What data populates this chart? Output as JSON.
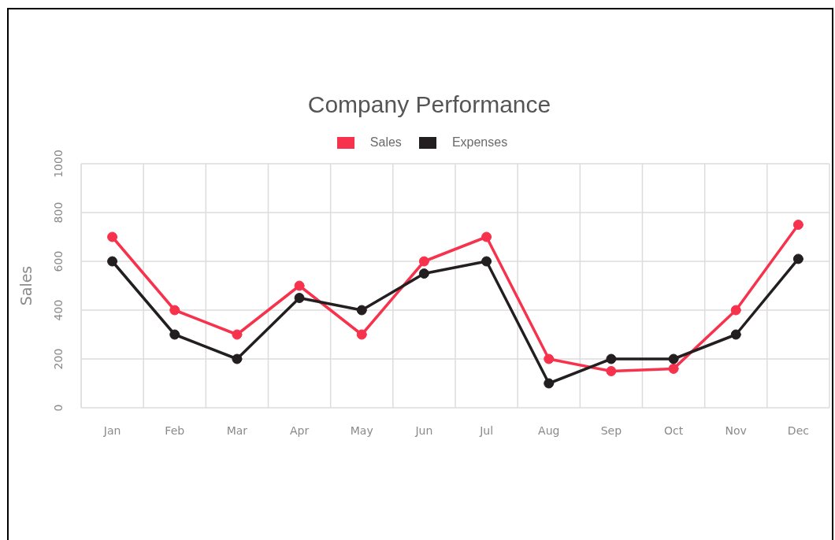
{
  "chart_data": {
    "type": "line",
    "title": "Company Performance",
    "ylabel": "Sales",
    "categories": [
      "Jan",
      "Feb",
      "Mar",
      "Apr",
      "May",
      "Jun",
      "Jul",
      "Aug",
      "Sep",
      "Oct",
      "Nov",
      "Dec"
    ],
    "series": [
      {
        "name": "Sales",
        "color": "#f7324c",
        "values": [
          700,
          400,
          300,
          500,
          300,
          600,
          700,
          200,
          150,
          160,
          400,
          750
        ]
      },
      {
        "name": "Expenses",
        "color": "#231f20",
        "values": [
          600,
          300,
          200,
          450,
          400,
          550,
          600,
          100,
          200,
          200,
          300,
          610
        ]
      }
    ],
    "ylim": [
      0,
      1000
    ],
    "yticks": [
      0,
      200,
      400,
      600,
      800,
      1000
    ],
    "grid": true,
    "legend": "top",
    "marker": "circle",
    "line_style": "solid"
  }
}
